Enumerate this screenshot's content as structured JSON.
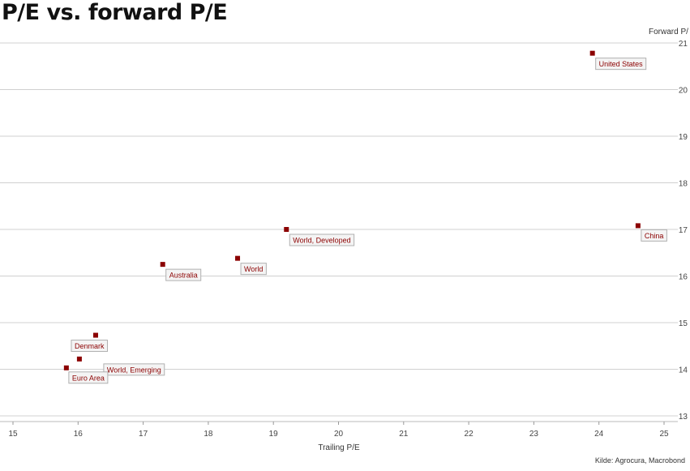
{
  "title": "P/E vs. forward P/E",
  "source": "Kilde: Agrocura, Macrobond",
  "chart_data": {
    "type": "scatter",
    "title": "P/E vs. forward P/E",
    "xlabel": "Trailing P/E",
    "ylabel": "Forward P/",
    "xlim": [
      15,
      25
    ],
    "ylim": [
      13,
      21
    ],
    "xticks": [
      15,
      16,
      17,
      18,
      19,
      20,
      21,
      22,
      23,
      24,
      25
    ],
    "yticks": [
      13,
      14,
      15,
      16,
      17,
      18,
      19,
      20,
      21
    ],
    "grid": "horizontal",
    "marker_color": "#8b0000",
    "points": [
      {
        "label": "United States",
        "x": 23.9,
        "y": 20.78
      },
      {
        "label": "China",
        "x": 24.6,
        "y": 17.08
      },
      {
        "label": "World, Developed",
        "x": 19.2,
        "y": 17.0
      },
      {
        "label": "World",
        "x": 18.45,
        "y": 16.38
      },
      {
        "label": "Australia",
        "x": 17.3,
        "y": 16.25
      },
      {
        "label": "Denmark",
        "x": 16.27,
        "y": 14.73
      },
      {
        "label": "World, Emerging",
        "x": 16.02,
        "y": 14.22
      },
      {
        "label": "Euro Area",
        "x": 15.82,
        "y": 14.03
      }
    ]
  }
}
